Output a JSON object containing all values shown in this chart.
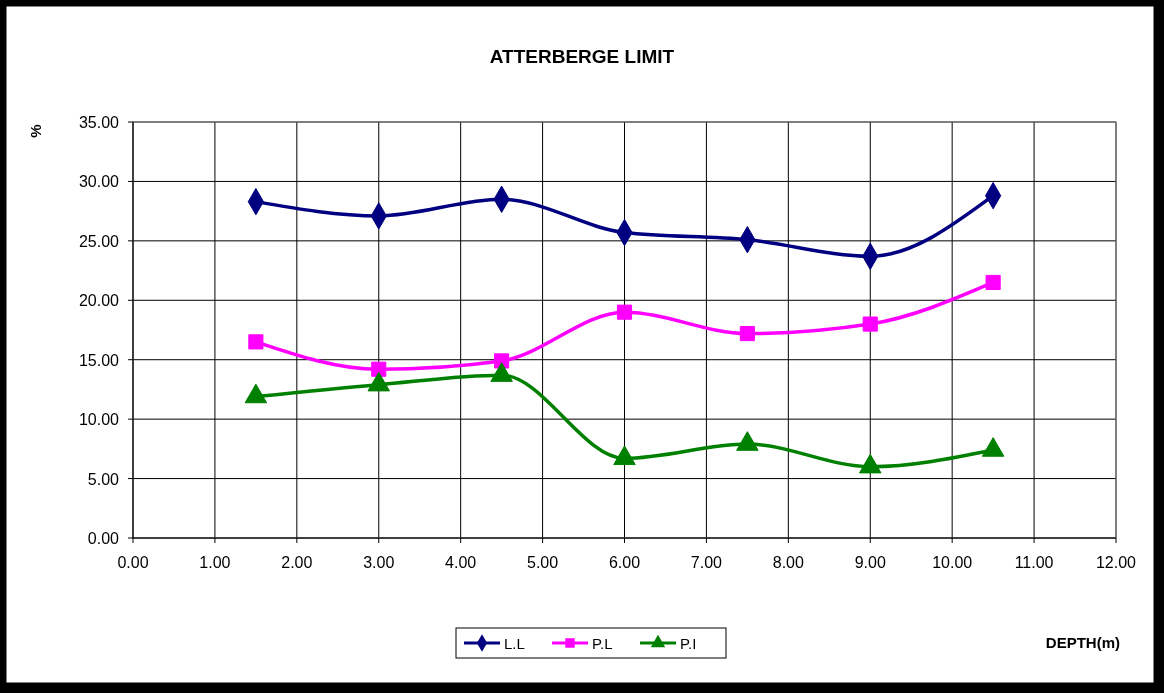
{
  "chart_data": {
    "type": "line",
    "title": "ATTERBERGE LIMIT",
    "xlabel": "DEPTH(m)",
    "ylabel": "%",
    "x": [
      1.5,
      3,
      4.5,
      6,
      7.5,
      9,
      10.5
    ],
    "series": [
      {
        "name": "L.L",
        "color": "#000080",
        "marker": "diamond",
        "values": [
          28.3,
          27.1,
          28.5,
          25.7,
          25.1,
          23.7,
          28.8
        ]
      },
      {
        "name": "P.L",
        "color": "#ff00ff",
        "marker": "square",
        "values": [
          16.5,
          14.2,
          14.9,
          19.0,
          17.2,
          18.0,
          21.5
        ]
      },
      {
        "name": "P.I",
        "color": "#008000",
        "marker": "triangle",
        "values": [
          11.9,
          12.9,
          13.7,
          6.7,
          7.9,
          6.0,
          7.4
        ]
      }
    ],
    "xlim": [
      0,
      12
    ],
    "xticks": [
      {
        "value": 0,
        "label": "0.00"
      },
      {
        "value": 1,
        "label": "1.00"
      },
      {
        "value": 2,
        "label": "2.00"
      },
      {
        "value": 3,
        "label": "3.00"
      },
      {
        "value": 4,
        "label": "4.00"
      },
      {
        "value": 5,
        "label": "5.00"
      },
      {
        "value": 6,
        "label": "6.00"
      },
      {
        "value": 7,
        "label": "7.00"
      },
      {
        "value": 8,
        "label": "8.00"
      },
      {
        "value": 9,
        "label": "9.00"
      },
      {
        "value": 10,
        "label": "10.00"
      },
      {
        "value": 11,
        "label": "11.00"
      },
      {
        "value": 12,
        "label": "12.00"
      }
    ],
    "ylim": [
      0,
      35
    ],
    "yticks": [
      {
        "value": 0,
        "label": "0.00"
      },
      {
        "value": 5,
        "label": "5.00"
      },
      {
        "value": 10,
        "label": "10.00"
      },
      {
        "value": 15,
        "label": "15.00"
      },
      {
        "value": 20,
        "label": "20.00"
      },
      {
        "value": 25,
        "label": "25.00"
      },
      {
        "value": 30,
        "label": "30.00"
      },
      {
        "value": 35,
        "label": "35.00"
      }
    ],
    "grid": true,
    "legend": "bottom",
    "line_style": "solid"
  }
}
